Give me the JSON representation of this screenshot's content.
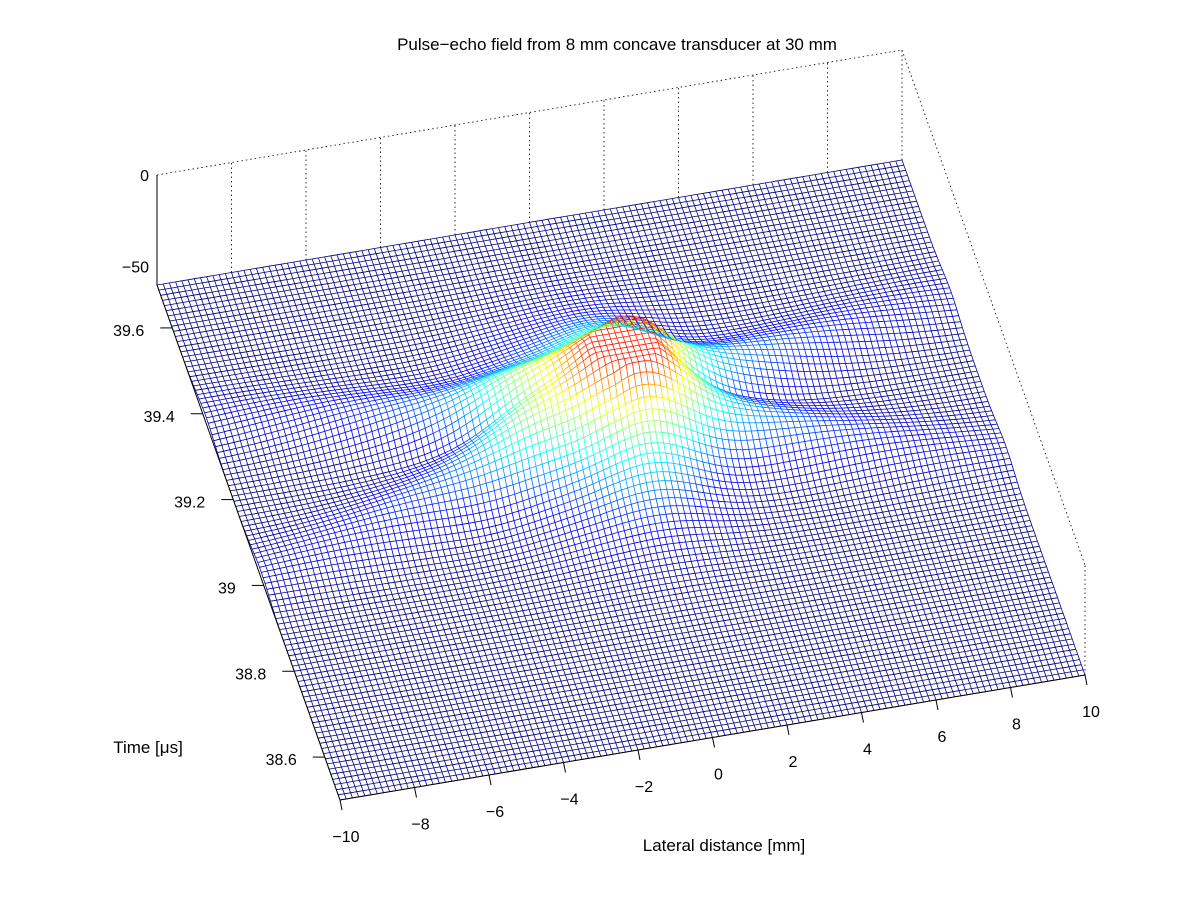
{
  "chart_data": {
    "type": "surface",
    "title": "Pulse−echo field from 8 mm concave transducer at 30 mm",
    "xlabel": "Lateral distance [mm]",
    "ylabel": "Time [μs]",
    "zlabel": "",
    "xlim": [
      -10,
      10
    ],
    "ylim": [
      38.5,
      39.7
    ],
    "zlim": [
      -60,
      0
    ],
    "x_ticks": [
      "−10",
      "−8",
      "−6",
      "−4",
      "−2",
      "0",
      "2",
      "4",
      "6",
      "8",
      "10"
    ],
    "y_ticks": [
      "38.6",
      "38.8",
      "39",
      "39.2",
      "39.4",
      "39.6"
    ],
    "z_ticks": [
      "0",
      "−50"
    ],
    "colormap": "jet",
    "grid": true,
    "peak": {
      "x": 0,
      "y": 39.2,
      "z": 0
    },
    "floor_level_db": -60
  }
}
